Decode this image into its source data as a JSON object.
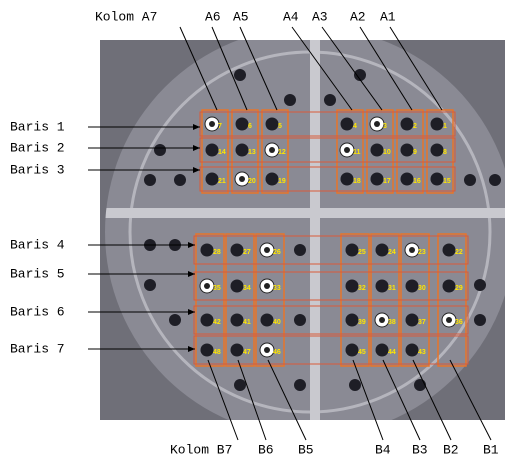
{
  "top_labels": [
    "Kolom A7",
    "A6",
    "A5",
    "A4",
    "A3",
    "A2",
    "A1"
  ],
  "bottom_labels": [
    "Kolom B7",
    "B6",
    "B5",
    "B4",
    "B3",
    "B2",
    "B1"
  ],
  "row_labels": [
    "Baris 1",
    "Baris 2",
    "Baris 3",
    "Baris 4",
    "Baris 5",
    "Baris 6",
    "Baris 7"
  ],
  "hole_numbers": {
    "top": [
      [
        "7",
        "6",
        "5",
        "4",
        "3",
        "2",
        "1"
      ],
      [
        "14",
        "13",
        "12",
        "11",
        "10",
        "9",
        "8"
      ],
      [
        "21",
        "20",
        "19",
        "18",
        "17",
        "16",
        "15"
      ]
    ],
    "bottom": [
      [
        "28",
        "27",
        "26",
        "25",
        "24",
        "23",
        "22"
      ],
      [
        "35",
        "34",
        "33",
        "32",
        "31",
        "30",
        "29"
      ],
      [
        "42",
        "41",
        "40",
        "39",
        "38",
        "37",
        "36"
      ],
      [
        "48",
        "47",
        "46",
        "45",
        "44",
        "43"
      ]
    ]
  }
}
